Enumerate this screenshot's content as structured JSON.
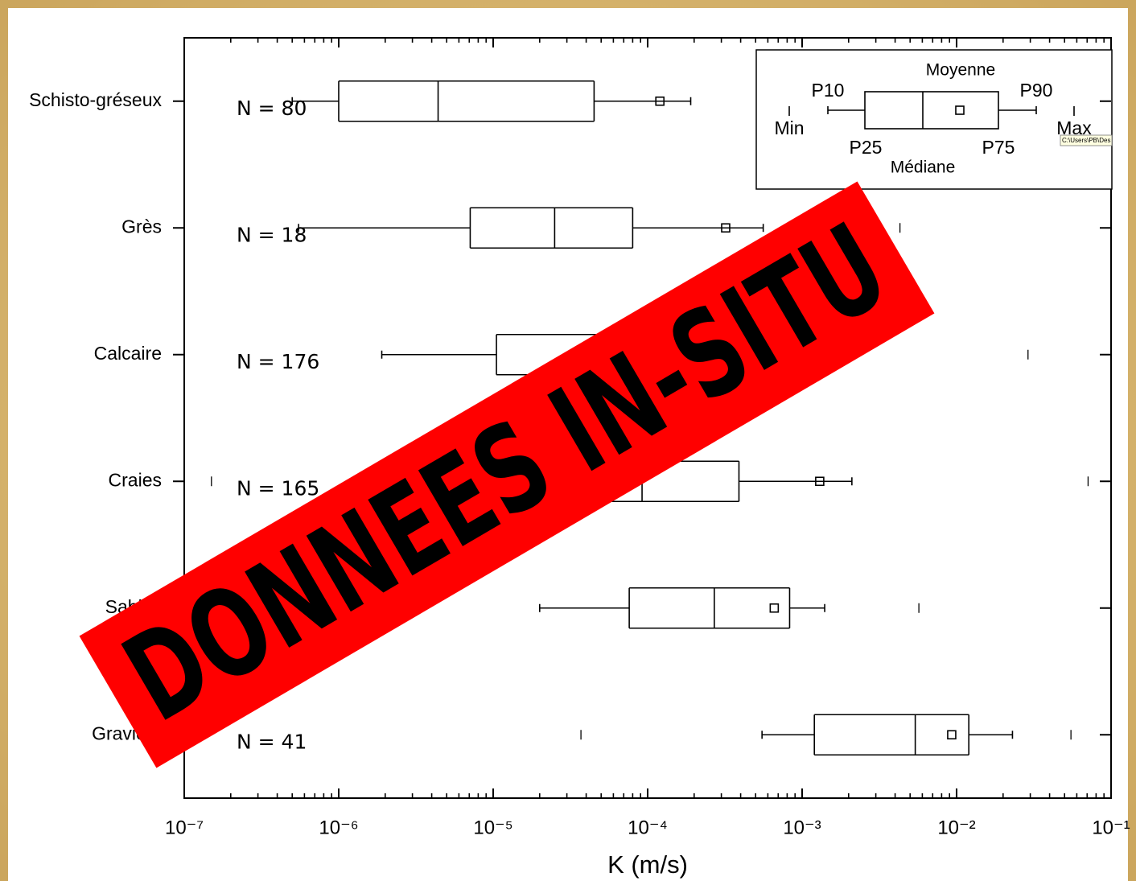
{
  "chart_data": {
    "type": "box",
    "xlabel": "K (m/s)",
    "log_x": true,
    "xlim": [
      1e-07,
      0.1
    ],
    "xticks": [
      {
        "value": 1e-07,
        "label": "10⁻⁷"
      },
      {
        "value": 1e-06,
        "label": "10⁻⁶"
      },
      {
        "value": 1e-05,
        "label": "10⁻⁵"
      },
      {
        "value": 0.0001,
        "label": "10⁻⁴"
      },
      {
        "value": 0.001,
        "label": "10⁻³"
      },
      {
        "value": 0.01,
        "label": "10⁻²"
      },
      {
        "value": 0.1,
        "label": "10⁻¹"
      }
    ],
    "categories": [
      "Schisto-gréseux",
      "Grès",
      "Calcaire",
      "Craies",
      "Sables",
      "Graviers"
    ],
    "min": [
      null,
      null,
      null,
      1.5e-07,
      null,
      3.7e-05
    ],
    "p10": [
      5e-07,
      5.5e-07,
      1.9e-06,
      null,
      2e-05,
      0.00055
    ],
    "p25": [
      1e-06,
      7.1e-06,
      1.05e-05,
      null,
      7.6e-05,
      0.0012
    ],
    "median": [
      4.4e-06,
      2.5e-05,
      null,
      9.2e-05,
      0.00027,
      0.0054
    ],
    "p75": [
      4.5e-05,
      8e-05,
      null,
      0.00039,
      0.00083,
      0.012
    ],
    "p90": [
      0.00019,
      0.00056,
      null,
      0.0021,
      0.0014,
      0.023
    ],
    "mean": [
      0.00012,
      0.00032,
      null,
      0.0013,
      0.00066,
      0.0093
    ],
    "max": [
      null,
      0.0043,
      0.029,
      0.071,
      0.0057,
      0.055
    ],
    "n_labels": [
      "N = 80",
      "N = 18",
      "N = 176",
      "N = 165",
      null,
      "N = 41"
    ],
    "legend": {
      "moyenne": "Moyenne",
      "p10": "P10",
      "p90": "P90",
      "min": "Min",
      "max": "Max",
      "p25": "P25",
      "p75": "P75",
      "mediane": "Médiane"
    },
    "tooltip": "C:\\Users\\PB\\Des",
    "overlay": "DONNEES IN-SITU"
  }
}
